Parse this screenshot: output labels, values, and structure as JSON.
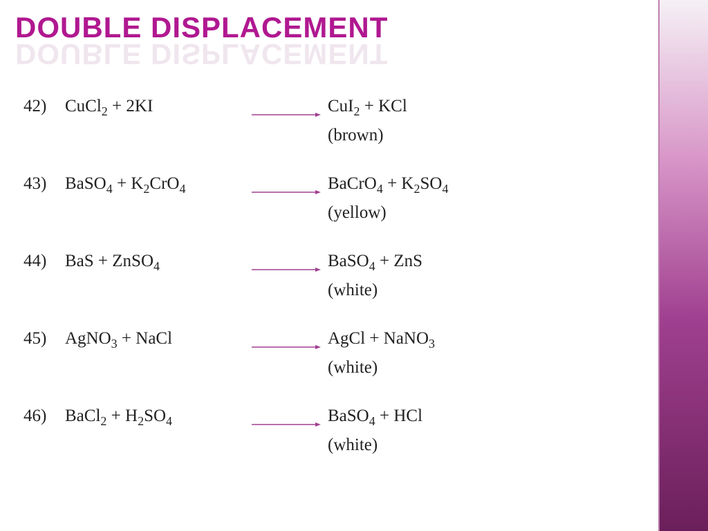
{
  "title": "Double displacement",
  "title_color": "#b01890",
  "reflection_color": "#e0c8db",
  "sidebar_gradient": [
    "#f5f0f5",
    "#d896c8",
    "#a04090",
    "#6b1f5a"
  ],
  "arrow_color": "#a04090",
  "text_color": "#222222",
  "background_color": "#ffffff",
  "body_fontsize": 25,
  "title_fontsize": 42,
  "reactions": [
    {
      "num": "42)",
      "reactants": "CuCl<sub>2</sub> + 2KI",
      "products": "CuI<sub>2</sub>  +  KCl",
      "note": "(brown)"
    },
    {
      "num": "43)",
      "reactants": "BaSO<sub>4</sub> + K<sub>2</sub>CrO<sub>4</sub>",
      "products": "BaCrO<sub>4</sub> + K<sub>2</sub>SO<sub>4</sub>",
      "note": "(yellow)"
    },
    {
      "num": "44)",
      "reactants": "BaS + ZnSO<sub>4</sub>",
      "products": "BaSO<sub>4</sub> + ZnS",
      "note": "(white)"
    },
    {
      "num": "45)",
      "reactants": "AgNO<sub>3</sub> + NaCl",
      "products": "AgCl + NaNO<sub>3</sub>",
      "note": "(white)"
    },
    {
      "num": "46)",
      "reactants": "BaCl<sub>2</sub> + H<sub>2</sub>SO<sub>4</sub>",
      "products": "BaSO<sub>4</sub> + HCl",
      "note": "(white)"
    }
  ]
}
